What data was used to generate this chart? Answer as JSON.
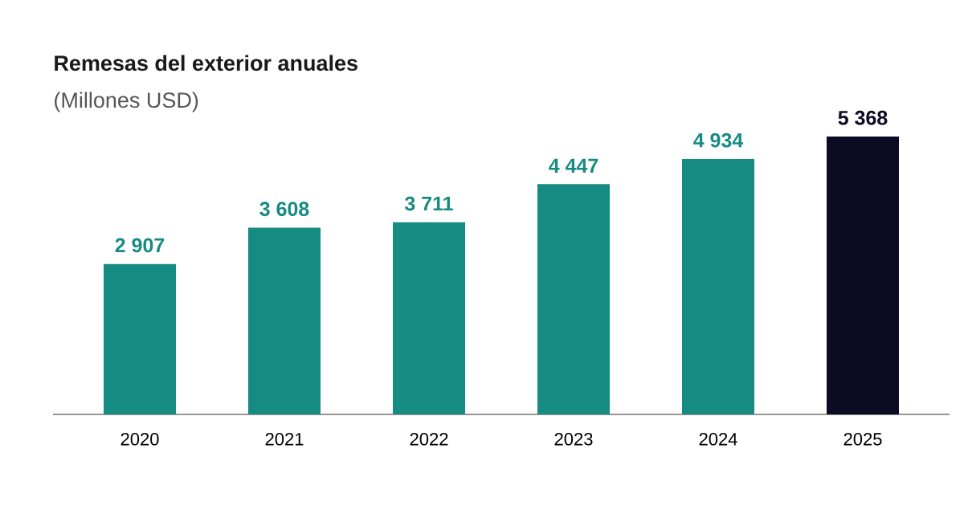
{
  "chart_data": {
    "type": "bar",
    "title": "Remesas del exterior anuales",
    "subtitle": "(Millones USD)",
    "categories": [
      "2020",
      "2021",
      "2022",
      "2023",
      "2024",
      "2025"
    ],
    "values": [
      2907,
      3608,
      3711,
      4447,
      4934,
      5368
    ],
    "colors": [
      "#168b81",
      "#168b81",
      "#168b81",
      "#168b81",
      "#168b81",
      "#0c0b24"
    ],
    "value_labels": [
      "2 907",
      "3 608",
      "3 711",
      "4 447",
      "4 934",
      "5 368"
    ]
  }
}
